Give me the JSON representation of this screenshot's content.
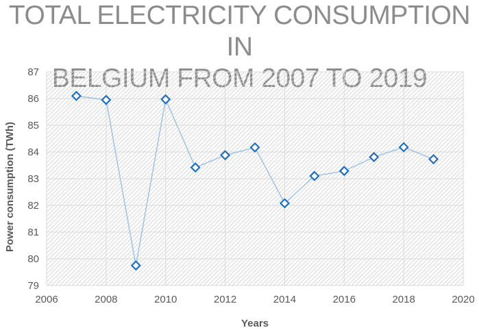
{
  "chart_data": {
    "type": "line",
    "title_lines": [
      "TOTAL ELECTRICITY CONSUMPTION IN",
      "BELGIUM FROM 2007 TO 2019"
    ],
    "xlabel": "Years",
    "ylabel": "Power consumption (TWh)",
    "xlim": [
      2006,
      2020
    ],
    "ylim": [
      79,
      87
    ],
    "xticks": [
      2006,
      2008,
      2010,
      2012,
      2014,
      2016,
      2018,
      2020
    ],
    "yticks": [
      79,
      80,
      81,
      82,
      83,
      84,
      85,
      86,
      87
    ],
    "grid": true,
    "legend": "none",
    "series": [
      {
        "name": "Total electricity consumption",
        "x": [
          2007,
          2008,
          2009,
          2010,
          2011,
          2012,
          2013,
          2014,
          2015,
          2016,
          2017,
          2018,
          2019
        ],
        "values": [
          86.1,
          85.95,
          79.75,
          85.97,
          83.42,
          83.88,
          84.17,
          82.08,
          83.1,
          83.29,
          83.81,
          84.18,
          83.73
        ]
      }
    ],
    "colors": {
      "line": "#9dc3e6",
      "marker_stroke": "#1f6fc1",
      "marker_fill": "#ffffff",
      "grid": "#d9d9d9",
      "hatch": "#d0d0d0",
      "text": "#595959",
      "title": "#8c8c8c"
    }
  }
}
